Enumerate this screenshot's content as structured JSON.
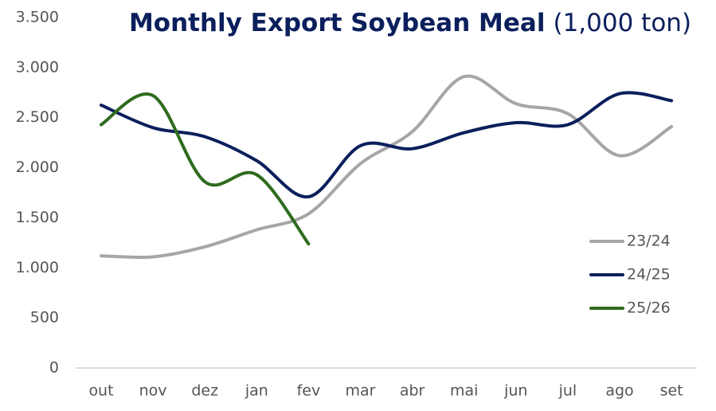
{
  "chart_data": {
    "type": "line",
    "title": "Monthly Export Soybean Meal",
    "unit_label": "(1,000 ton)",
    "categories": [
      "out",
      "nov",
      "dez",
      "jan",
      "fev",
      "mar",
      "abr",
      "mai",
      "jun",
      "jul",
      "ago",
      "set"
    ],
    "series": [
      {
        "name": "23/24",
        "color": "#a6a6a6",
        "values": [
          1120,
          1110,
          1210,
          1380,
          1540,
          2040,
          2360,
          2910,
          2640,
          2540,
          2120,
          2410
        ]
      },
      {
        "name": "24/25",
        "color": "#0b1f5c",
        "values": [
          2625,
          2400,
          2310,
          2070,
          1710,
          2220,
          2190,
          2350,
          2450,
          2430,
          2740,
          2670
        ]
      },
      {
        "name": "25/26",
        "color": "#2e6b1e",
        "values": [
          2430,
          2720,
          1860,
          1930,
          1240,
          null,
          null,
          null,
          null,
          null,
          null,
          null
        ]
      }
    ],
    "ylim": [
      0,
      3500
    ],
    "yticks": [
      0,
      500,
      {
        "value": 1000,
        "label": "1.000"
      },
      {
        "value": 1500,
        "label": "1.500"
      },
      {
        "value": 2000,
        "label": "2.000"
      },
      {
        "value": 2500,
        "label": "2.500"
      },
      {
        "value": 3000,
        "label": "3.000"
      },
      {
        "value": 3500,
        "label": "3.500"
      }
    ],
    "grid": false,
    "smooth": true,
    "legend": "right"
  }
}
